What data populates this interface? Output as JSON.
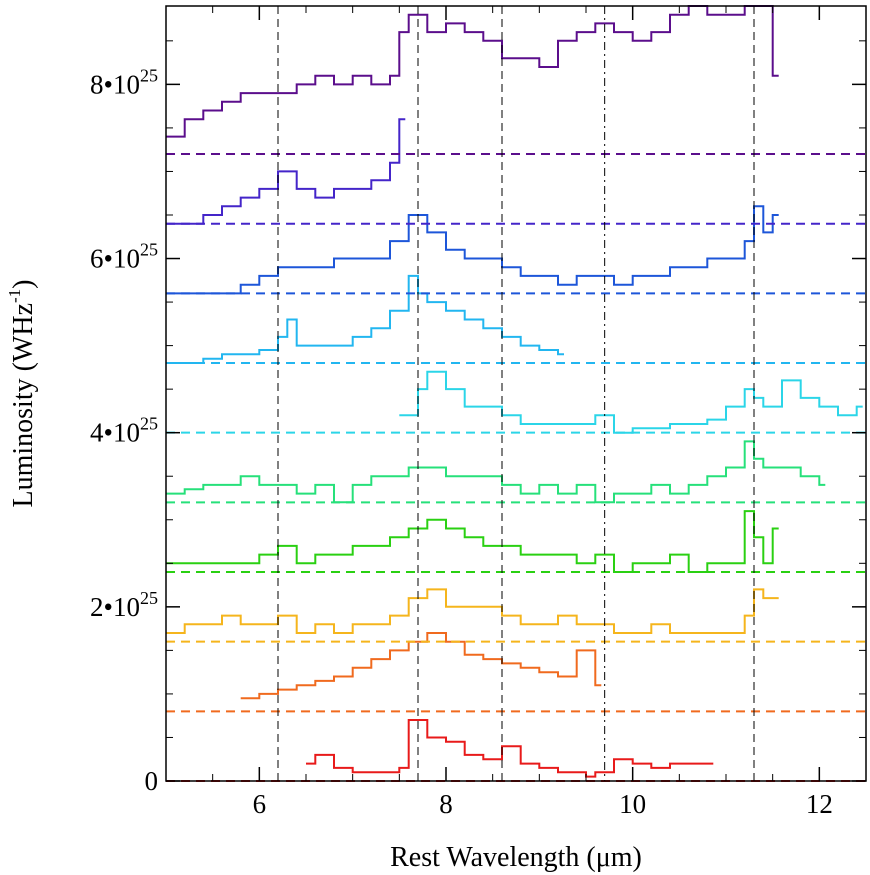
{
  "chart_data": {
    "type": "line",
    "xlabel": "Rest Wavelength (μm)",
    "ylabel": "Luminosity (WHz",
    "ylabel_sup": "-1",
    "ylabel_close": ")",
    "xlim": [
      5.0,
      12.5
    ],
    "ylim": [
      0,
      8.9e+25
    ],
    "x_ticks": [
      {
        "value": 6,
        "label": "6"
      },
      {
        "value": 8,
        "label": "8"
      },
      {
        "value": 10,
        "label": "10"
      },
      {
        "value": 12,
        "label": "12"
      }
    ],
    "y_ticks": [
      {
        "value": 0,
        "base": "0",
        "sup": ""
      },
      {
        "value": 2e+25,
        "base": "2•10",
        "sup": "25"
      },
      {
        "value": 4e+25,
        "base": "4•10",
        "sup": "25"
      },
      {
        "value": 6e+25,
        "base": "6•10",
        "sup": "25"
      },
      {
        "value": 8e+25,
        "base": "8•10",
        "sup": "25"
      }
    ],
    "vlines": [
      {
        "x": 6.2,
        "style": "dashed"
      },
      {
        "x": 7.7,
        "style": "dashed"
      },
      {
        "x": 8.6,
        "style": "dashed"
      },
      {
        "x": 9.7,
        "style": "dashdot"
      },
      {
        "x": 11.3,
        "style": "dashed"
      }
    ],
    "series": [
      {
        "color": "#5B0E8C",
        "baseline": 7.2e+25,
        "x": [
          5.0,
          5.2,
          5.4,
          5.6,
          5.8,
          6.0,
          6.2,
          6.4,
          6.6,
          6.8,
          7.0,
          7.2,
          7.4,
          7.5,
          7.6,
          7.8,
          8.0,
          8.2,
          8.4,
          8.6,
          8.8,
          9.0,
          9.2,
          9.4,
          9.6,
          9.8,
          10.0,
          10.2,
          10.4,
          10.6,
          10.8,
          11.0,
          11.2,
          11.4,
          11.5
        ],
        "values": [
          7.4e+25,
          7.6e+25,
          7.7e+25,
          7.8e+25,
          7.9e+25,
          7.9e+25,
          7.9e+25,
          8e+25,
          8.1e+25,
          8e+25,
          8.1e+25,
          8e+25,
          8.1e+25,
          8.6e+25,
          8.8e+25,
          8.6e+25,
          8.7e+25,
          8.6e+25,
          8.5e+25,
          8.3e+25,
          8.3e+25,
          8.2e+25,
          8.5e+25,
          8.6e+25,
          8.7e+25,
          8.6e+25,
          8.5e+25,
          8.6e+25,
          8.8e+25,
          8.9e+25,
          8.8e+25,
          8.8e+25,
          8.9e+25,
          8.9e+25,
          8.1e+25
        ]
      },
      {
        "color": "#4425C9",
        "baseline": 6.4e+25,
        "x": [
          5.0,
          5.2,
          5.4,
          5.6,
          5.8,
          6.0,
          6.2,
          6.4,
          6.6,
          6.8,
          7.0,
          7.2,
          7.4,
          7.5
        ],
        "values": [
          6.4e+25,
          6.4e+25,
          6.5e+25,
          6.6e+25,
          6.7e+25,
          6.8e+25,
          7e+25,
          6.8e+25,
          6.7e+25,
          6.8e+25,
          6.8e+25,
          6.9e+25,
          7.1e+25,
          7.6e+25
        ]
      },
      {
        "color": "#1D56D9",
        "baseline": 5.6e+25,
        "x": [
          5.0,
          5.2,
          5.4,
          5.6,
          5.8,
          6.0,
          6.2,
          6.4,
          6.6,
          6.8,
          7.0,
          7.2,
          7.4,
          7.6,
          7.8,
          8.0,
          8.2,
          8.4,
          8.6,
          8.8,
          9.0,
          9.2,
          9.4,
          9.6,
          9.8,
          10.0,
          10.2,
          10.4,
          10.6,
          10.8,
          11.0,
          11.2,
          11.3,
          11.4,
          11.5
        ],
        "values": [
          5.6e+25,
          5.6e+25,
          5.6e+25,
          5.6e+25,
          5.7e+25,
          5.8e+25,
          5.9e+25,
          5.9e+25,
          5.9e+25,
          6e+25,
          6e+25,
          6e+25,
          6.2e+25,
          6.5e+25,
          6.3e+25,
          6.1e+25,
          6e+25,
          6e+25,
          5.9e+25,
          5.8e+25,
          5.8e+25,
          5.7e+25,
          5.8e+25,
          5.8e+25,
          5.7e+25,
          5.8e+25,
          5.8e+25,
          5.9e+25,
          5.9e+25,
          6e+25,
          6e+25,
          6.2e+25,
          6.6e+25,
          6.3e+25,
          6.5e+25
        ]
      },
      {
        "color": "#22B6F0",
        "baseline": 4.8e+25,
        "x": [
          5.0,
          5.2,
          5.4,
          5.6,
          5.8,
          6.0,
          6.2,
          6.3,
          6.4,
          6.6,
          6.8,
          7.0,
          7.2,
          7.4,
          7.6,
          7.7,
          7.8,
          8.0,
          8.2,
          8.4,
          8.6,
          8.8,
          9.0,
          9.2
        ],
        "values": [
          4.8e+25,
          4.8e+25,
          4.85e+25,
          4.9e+25,
          4.9e+25,
          4.95e+25,
          5.1e+25,
          5.3e+25,
          5e+25,
          5e+25,
          5e+25,
          5.1e+25,
          5.2e+25,
          5.4e+25,
          5.8e+25,
          5.6e+25,
          5.5e+25,
          5.4e+25,
          5.3e+25,
          5.2e+25,
          5.1e+25,
          5e+25,
          4.95e+25,
          4.9e+25
        ]
      },
      {
        "color": "#2BD5E8",
        "baseline": 4e+25,
        "x": [
          7.5,
          7.7,
          7.8,
          8.0,
          8.2,
          8.4,
          8.6,
          8.8,
          9.0,
          9.2,
          9.4,
          9.6,
          9.8,
          10.0,
          10.2,
          10.4,
          10.6,
          10.8,
          11.0,
          11.2,
          11.3,
          11.4,
          11.6,
          11.8,
          12.0,
          12.2,
          12.4
        ],
        "values": [
          4.2e+25,
          4.5e+25,
          4.7e+25,
          4.5e+25,
          4.3e+25,
          4.3e+25,
          4.2e+25,
          4.1e+25,
          4.1e+25,
          4.1e+25,
          4.1e+25,
          4.2e+25,
          4e+25,
          4.05e+25,
          4.05e+25,
          4.1e+25,
          4.1e+25,
          4.15e+25,
          4.3e+25,
          4.5e+25,
          4.4e+25,
          4.3e+25,
          4.6e+25,
          4.4e+25,
          4.3e+25,
          4.2e+25,
          4.3e+25
        ]
      },
      {
        "color": "#26E07A",
        "baseline": 3.2e+25,
        "x": [
          5.0,
          5.2,
          5.4,
          5.6,
          5.8,
          6.0,
          6.2,
          6.4,
          6.6,
          6.8,
          7.0,
          7.2,
          7.4,
          7.6,
          7.8,
          8.0,
          8.2,
          8.4,
          8.6,
          8.8,
          9.0,
          9.2,
          9.4,
          9.6,
          9.8,
          10.0,
          10.2,
          10.4,
          10.6,
          10.8,
          11.0,
          11.2,
          11.3,
          11.4,
          11.6,
          11.8,
          12.0
        ],
        "values": [
          3.3e+25,
          3.35e+25,
          3.4e+25,
          3.4e+25,
          3.5e+25,
          3.4e+25,
          3.4e+25,
          3.3e+25,
          3.4e+25,
          3.2e+25,
          3.4e+25,
          3.5e+25,
          3.5e+25,
          3.6e+25,
          3.6e+25,
          3.5e+25,
          3.5e+25,
          3.5e+25,
          3.4e+25,
          3.3e+25,
          3.4e+25,
          3.3e+25,
          3.4e+25,
          3.2e+25,
          3.3e+25,
          3.3e+25,
          3.4e+25,
          3.3e+25,
          3.4e+25,
          3.5e+25,
          3.6e+25,
          3.9e+25,
          3.7e+25,
          3.6e+25,
          3.6e+25,
          3.5e+25,
          3.4e+25
        ]
      },
      {
        "color": "#2AD012",
        "baseline": 2.4e+25,
        "x": [
          5.0,
          5.2,
          5.4,
          5.6,
          5.8,
          6.0,
          6.2,
          6.4,
          6.6,
          6.8,
          7.0,
          7.2,
          7.4,
          7.6,
          7.8,
          8.0,
          8.2,
          8.4,
          8.6,
          8.8,
          9.0,
          9.2,
          9.4,
          9.6,
          9.8,
          10.0,
          10.2,
          10.4,
          10.6,
          10.8,
          11.0,
          11.2,
          11.3,
          11.4,
          11.5
        ],
        "values": [
          2.5e+25,
          2.5e+25,
          2.5e+25,
          2.5e+25,
          2.5e+25,
          2.6e+25,
          2.7e+25,
          2.5e+25,
          2.6e+25,
          2.6e+25,
          2.7e+25,
          2.7e+25,
          2.8e+25,
          2.9e+25,
          3e+25,
          2.9e+25,
          2.8e+25,
          2.7e+25,
          2.7e+25,
          2.6e+25,
          2.6e+25,
          2.6e+25,
          2.5e+25,
          2.6e+25,
          2.4e+25,
          2.5e+25,
          2.5e+25,
          2.6e+25,
          2.4e+25,
          2.5e+25,
          2.5e+25,
          3.1e+25,
          2.8e+25,
          2.5e+25,
          2.9e+25
        ]
      },
      {
        "color": "#F5B51C",
        "baseline": 1.6e+25,
        "x": [
          5.0,
          5.2,
          5.4,
          5.6,
          5.8,
          6.0,
          6.2,
          6.4,
          6.6,
          6.8,
          7.0,
          7.2,
          7.4,
          7.6,
          7.8,
          8.0,
          8.2,
          8.4,
          8.6,
          8.8,
          9.0,
          9.2,
          9.4,
          9.6,
          9.8,
          10.0,
          10.2,
          10.4,
          10.6,
          10.8,
          11.0,
          11.2,
          11.3,
          11.4,
          11.5
        ],
        "values": [
          1.7e+25,
          1.8e+25,
          1.8e+25,
          1.9e+25,
          1.8e+25,
          1.8e+25,
          1.9e+25,
          1.7e+25,
          1.8e+25,
          1.7e+25,
          1.8e+25,
          1.8e+25,
          1.9e+25,
          2.1e+25,
          2.2e+25,
          2e+25,
          2e+25,
          2e+25,
          1.9e+25,
          1.8e+25,
          1.8e+25,
          1.9e+25,
          1.8e+25,
          1.8e+25,
          1.7e+25,
          1.7e+25,
          1.8e+25,
          1.7e+25,
          1.7e+25,
          1.7e+25,
          1.7e+25,
          1.9e+25,
          2.2e+25,
          2.1e+25,
          2.1e+25
        ]
      },
      {
        "color": "#F06A1E",
        "baseline": 8e+24,
        "x": [
          5.8,
          6.0,
          6.2,
          6.4,
          6.6,
          6.8,
          7.0,
          7.2,
          7.4,
          7.6,
          7.8,
          8.0,
          8.2,
          8.4,
          8.6,
          8.8,
          9.0,
          9.2,
          9.4,
          9.6
        ],
        "values": [
          9.5e+24,
          1e+25,
          1.05e+25,
          1.1e+25,
          1.15e+25,
          1.2e+25,
          1.3e+25,
          1.4e+25,
          1.5e+25,
          1.6e+25,
          1.7e+25,
          1.6e+25,
          1.45e+25,
          1.4e+25,
          1.35e+25,
          1.3e+25,
          1.25e+25,
          1.2e+25,
          1.5e+25,
          1.1e+25
        ]
      },
      {
        "color": "#E81A1A",
        "baseline": 0.0,
        "x": [
          6.5,
          6.6,
          6.8,
          7.0,
          7.2,
          7.4,
          7.5,
          7.6,
          7.8,
          8.0,
          8.2,
          8.4,
          8.6,
          8.8,
          9.0,
          9.2,
          9.4,
          9.5,
          9.6,
          9.8,
          10.0,
          10.2,
          10.4,
          10.6,
          10.8
        ],
        "values": [
          2e+24,
          3e+24,
          1.5e+24,
          1e+24,
          1e+24,
          1e+24,
          1.5e+24,
          7e+24,
          5e+24,
          4.5e+24,
          3e+24,
          2.5e+24,
          4e+24,
          2e+24,
          1.5e+24,
          1e+24,
          1e+24,
          5e+23,
          1e+24,
          2.5e+24,
          2e+24,
          1.5e+24,
          2e+24,
          2e+24,
          2e+24
        ]
      }
    ]
  }
}
